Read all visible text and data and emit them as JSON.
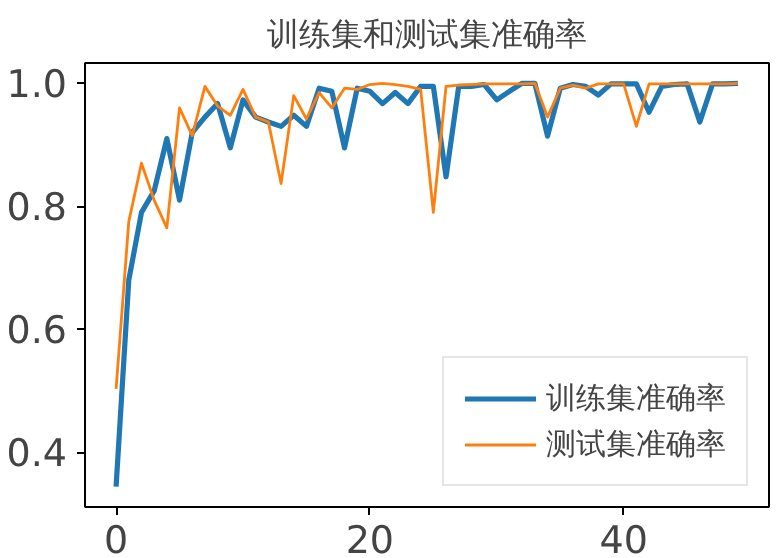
{
  "chart_data": {
    "type": "line",
    "title": "训练集和测试集准确率",
    "x": [
      0,
      1,
      2,
      3,
      4,
      5,
      6,
      7,
      8,
      9,
      10,
      11,
      12,
      13,
      14,
      15,
      16,
      17,
      18,
      19,
      20,
      21,
      22,
      23,
      24,
      25,
      26,
      27,
      28,
      29,
      30,
      31,
      32,
      33,
      34,
      35,
      36,
      37,
      38,
      39,
      40,
      41,
      42,
      43,
      44,
      45,
      46,
      47,
      48,
      49
    ],
    "series": [
      {
        "name": "训练集准确率",
        "color": "#1f77b4",
        "values": [
          0.344,
          0.68,
          0.79,
          0.825,
          0.91,
          0.81,
          0.92,
          0.945,
          0.967,
          0.895,
          0.973,
          0.945,
          0.937,
          0.93,
          0.948,
          0.93,
          0.992,
          0.987,
          0.895,
          0.992,
          0.987,
          0.967,
          0.985,
          0.967,
          0.995,
          0.995,
          0.848,
          0.995,
          0.995,
          0.998,
          0.973,
          0.987,
          1.0,
          1.0,
          0.914,
          0.992,
          0.998,
          0.995,
          0.981,
          0.999,
          0.999,
          0.999,
          0.953,
          0.995,
          0.998,
          0.999,
          0.937,
          0.999,
          0.999,
          1.0
        ]
      },
      {
        "name": "测试集准确率",
        "color": "#ff7f0e",
        "values": [
          0.503,
          0.775,
          0.87,
          0.81,
          0.765,
          0.96,
          0.915,
          0.995,
          0.963,
          0.948,
          0.99,
          0.945,
          0.937,
          0.837,
          0.98,
          0.942,
          0.985,
          0.96,
          0.992,
          0.99,
          0.998,
          1.0,
          0.998,
          0.995,
          0.99,
          0.79,
          0.995,
          0.997,
          0.998,
          0.999,
          0.999,
          0.999,
          0.999,
          1.0,
          0.945,
          0.992,
          0.997,
          0.992,
          0.999,
          0.999,
          0.999,
          0.93,
          0.999,
          0.999,
          0.999,
          0.999,
          0.999,
          0.999,
          0.999,
          1.0
        ]
      }
    ],
    "xlim": [
      -2.45,
      51.45
    ],
    "ylim": [
      0.311,
      1.033
    ],
    "xticks": [
      0,
      20,
      40
    ],
    "yticks": [
      {
        "value": 0.4,
        "label": "0.4"
      },
      {
        "value": 0.6,
        "label": "0.6"
      },
      {
        "value": 0.8,
        "label": "0.8"
      },
      {
        "value": 1.0,
        "label": "1.0"
      }
    ],
    "grid": false,
    "legend": "bottom right",
    "line_style": "solid",
    "marker": "none"
  }
}
